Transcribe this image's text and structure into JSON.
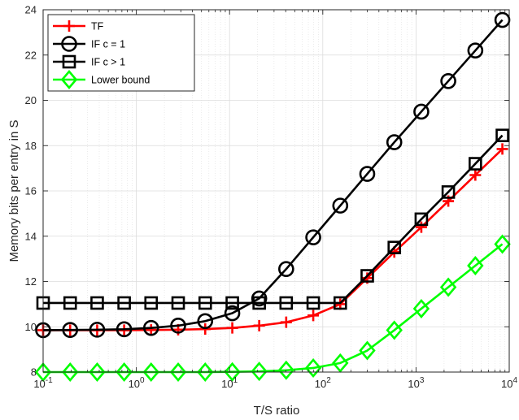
{
  "chart_data": {
    "type": "line",
    "xlabel": "T/S ratio",
    "ylabel": "Memory bits per entry in S",
    "xscale": "log",
    "xlim": [
      0.1,
      10000
    ],
    "ylim": [
      8,
      24
    ],
    "grid": true,
    "legend_position": "top-left",
    "x_tick_labels": [
      {
        "base": "10",
        "exp": "-1"
      },
      {
        "base": "10",
        "exp": "0"
      },
      {
        "base": "10",
        "exp": "1"
      },
      {
        "base": "10",
        "exp": "2"
      },
      {
        "base": "10",
        "exp": "3"
      },
      {
        "base": "10",
        "exp": "4"
      }
    ],
    "y_ticks": [
      "8",
      "10",
      "12",
      "14",
      "16",
      "18",
      "20",
      "22",
      "24"
    ],
    "x": [
      0.1,
      0.195,
      0.38,
      0.74,
      1.44,
      2.81,
      5.48,
      10.7,
      20.8,
      40.5,
      79,
      154,
      300,
      585,
      1140,
      2220,
      4330,
      8440
    ],
    "series": [
      {
        "name": "TF",
        "color": "#ff0000",
        "marker": "plus",
        "values": [
          9.85,
          9.85,
          9.85,
          9.85,
          9.86,
          9.87,
          9.9,
          9.95,
          10.05,
          10.2,
          10.5,
          11.0,
          12.15,
          13.3,
          14.4,
          15.55,
          16.7,
          17.85
        ]
      },
      {
        "name": "IF c = 1",
        "color": "#000000",
        "marker": "circle",
        "values": [
          9.85,
          9.86,
          9.87,
          9.89,
          9.95,
          10.05,
          10.25,
          10.6,
          11.25,
          12.55,
          13.95,
          15.35,
          16.75,
          18.15,
          19.5,
          20.85,
          22.2,
          23.55
        ]
      },
      {
        "name": "IF c > 1",
        "color": "#000000",
        "marker": "square",
        "values": [
          11.05,
          11.05,
          11.05,
          11.05,
          11.05,
          11.05,
          11.05,
          11.05,
          11.05,
          11.05,
          11.05,
          11.05,
          12.25,
          13.5,
          14.75,
          15.95,
          17.2,
          18.45
        ]
      },
      {
        "name": "Lower bound",
        "color": "#00ff00",
        "marker": "diamond",
        "values": [
          8.0,
          8.0,
          8.0,
          8.0,
          8.0,
          8.0,
          8.0,
          8.01,
          8.03,
          8.08,
          8.18,
          8.4,
          8.95,
          9.85,
          10.8,
          11.75,
          12.7,
          13.65
        ]
      }
    ]
  }
}
